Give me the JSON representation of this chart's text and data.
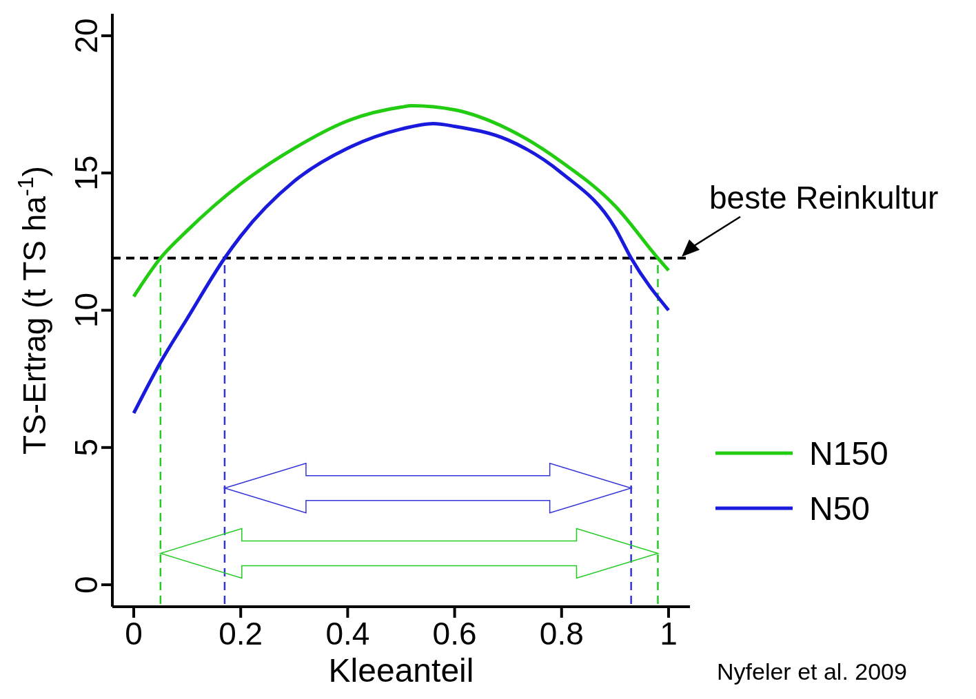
{
  "chart_data": {
    "type": "line",
    "xlabel": "Kleeanteil",
    "ylabel": "TS-Ertrag (t TS ha$^{-1}$)",
    "xlim": [
      -0.04,
      1.04
    ],
    "ylim": [
      -0.8,
      20.8
    ],
    "xticks": [
      0,
      {
        "value": 0.2,
        "label": "0.2"
      },
      {
        "value": 0.4,
        "label": "0.4"
      },
      {
        "value": 0.6,
        "label": "0.6"
      },
      {
        "value": 0.8,
        "label": "0.8"
      },
      1
    ],
    "yticks": [
      0,
      5,
      10,
      15,
      20
    ],
    "series": [
      {
        "name": "N150",
        "color": "#22cc11",
        "x": [
          0,
          0.05,
          0.1,
          0.2,
          0.3,
          0.4,
          0.5,
          0.52,
          0.6,
          0.7,
          0.8,
          0.9,
          0.98,
          1
        ],
        "values": [
          10.5,
          11.9,
          12.9,
          14.6,
          15.9,
          16.9,
          17.4,
          17.45,
          17.3,
          16.6,
          15.4,
          13.8,
          11.9,
          11.45
        ]
      },
      {
        "name": "N50",
        "color": "#1a1adc",
        "x": [
          0,
          0.05,
          0.1,
          0.17,
          0.2,
          0.3,
          0.4,
          0.5,
          0.56,
          0.6,
          0.7,
          0.8,
          0.9,
          0.93,
          1
        ],
        "values": [
          6.25,
          8.1,
          9.7,
          11.9,
          12.7,
          14.7,
          15.9,
          16.6,
          16.8,
          16.7,
          16.2,
          15.0,
          13.0,
          11.9,
          10.0
        ]
      }
    ],
    "ref_lines": [
      {
        "axis": "y",
        "value": 11.9,
        "label": "beste Reinkultur",
        "color": "#000000",
        "line_style": "dashed"
      },
      {
        "axis": "x",
        "value": 0.05,
        "color": "#22cc22",
        "line_style": "dashed"
      },
      {
        "axis": "x",
        "value": 0.98,
        "color": "#22cc22",
        "line_style": "dashed"
      },
      {
        "axis": "x",
        "value": 0.17,
        "color": "#3333dd",
        "line_style": "dashed"
      },
      {
        "axis": "x",
        "value": 0.93,
        "color": "#3333dd",
        "line_style": "dashed"
      }
    ],
    "annotations": [
      "Nyfeler et al. 2009"
    ],
    "grid": false,
    "legend": "right",
    "marker": "none",
    "line_style": "solid"
  }
}
